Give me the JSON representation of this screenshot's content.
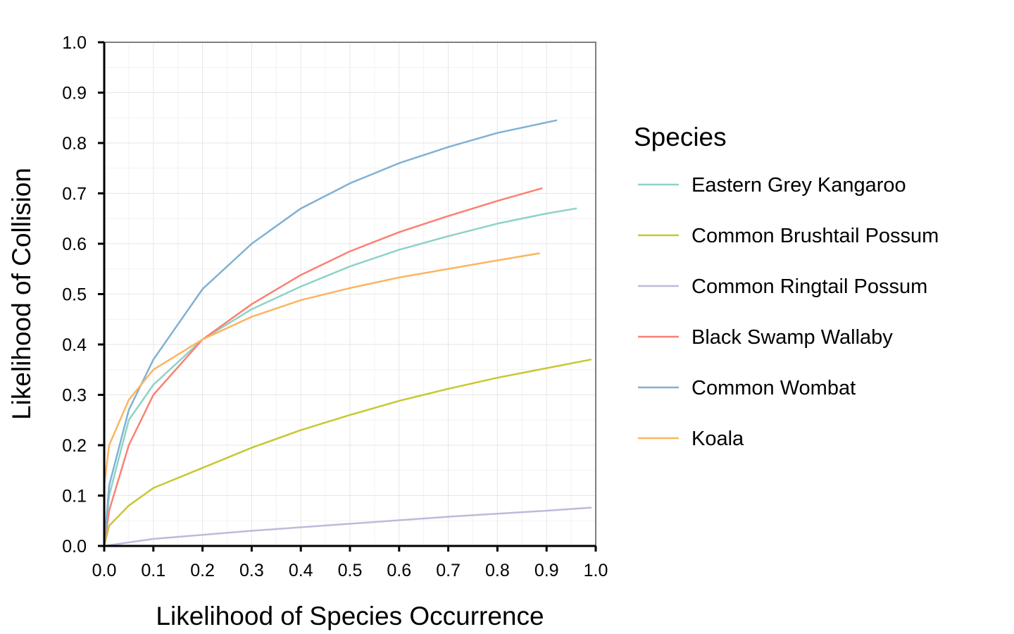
{
  "chart_data": {
    "type": "line",
    "title": "",
    "xlabel": "Likelihood of Species Occurrence",
    "ylabel": "Likelihood of Collision",
    "xlim": [
      0,
      1
    ],
    "ylim": [
      0,
      1
    ],
    "xticks": [
      "0.0",
      "0.1",
      "0.2",
      "0.3",
      "0.4",
      "0.5",
      "0.6",
      "0.7",
      "0.8",
      "0.9",
      "1.0"
    ],
    "yticks": [
      "0.0",
      "0.1",
      "0.2",
      "0.3",
      "0.4",
      "0.5",
      "0.6",
      "0.7",
      "0.8",
      "0.9",
      "1.0"
    ],
    "grid": true,
    "legend": {
      "title": "Species",
      "placement": "right"
    },
    "series": [
      {
        "name": "Eastern Grey Kangaroo",
        "color": "#8dd3c7",
        "points": [
          [
            0,
            0
          ],
          [
            0.01,
            0.1
          ],
          [
            0.05,
            0.25
          ],
          [
            0.1,
            0.32
          ],
          [
            0.2,
            0.41
          ],
          [
            0.3,
            0.47
          ],
          [
            0.4,
            0.515
          ],
          [
            0.5,
            0.555
          ],
          [
            0.6,
            0.588
          ],
          [
            0.7,
            0.615
          ],
          [
            0.8,
            0.64
          ],
          [
            0.9,
            0.66
          ],
          [
            0.96,
            0.67
          ]
        ]
      },
      {
        "name": "Common Brushtail Possum",
        "color": "#c7c832",
        "points": [
          [
            0,
            0
          ],
          [
            0.01,
            0.04
          ],
          [
            0.05,
            0.08
          ],
          [
            0.1,
            0.115
          ],
          [
            0.2,
            0.155
          ],
          [
            0.3,
            0.195
          ],
          [
            0.4,
            0.23
          ],
          [
            0.5,
            0.26
          ],
          [
            0.6,
            0.288
          ],
          [
            0.7,
            0.312
          ],
          [
            0.8,
            0.334
          ],
          [
            0.9,
            0.353
          ],
          [
            0.99,
            0.37
          ]
        ]
      },
      {
        "name": "Common Ringtail Possum",
        "color": "#bebada",
        "points": [
          [
            0,
            0
          ],
          [
            0.1,
            0.014
          ],
          [
            0.2,
            0.022
          ],
          [
            0.3,
            0.03
          ],
          [
            0.4,
            0.037
          ],
          [
            0.5,
            0.044
          ],
          [
            0.6,
            0.051
          ],
          [
            0.7,
            0.058
          ],
          [
            0.8,
            0.064
          ],
          [
            0.9,
            0.07
          ],
          [
            0.99,
            0.076
          ]
        ]
      },
      {
        "name": "Black Swamp Wallaby",
        "color": "#fb8072",
        "points": [
          [
            0,
            0
          ],
          [
            0.01,
            0.07
          ],
          [
            0.05,
            0.2
          ],
          [
            0.1,
            0.3
          ],
          [
            0.2,
            0.41
          ],
          [
            0.3,
            0.48
          ],
          [
            0.4,
            0.538
          ],
          [
            0.5,
            0.585
          ],
          [
            0.6,
            0.623
          ],
          [
            0.7,
            0.655
          ],
          [
            0.8,
            0.685
          ],
          [
            0.89,
            0.71
          ]
        ]
      },
      {
        "name": "Common Wombat",
        "color": "#80b1d3",
        "points": [
          [
            0,
            0
          ],
          [
            0.01,
            0.12
          ],
          [
            0.05,
            0.27
          ],
          [
            0.1,
            0.37
          ],
          [
            0.2,
            0.51
          ],
          [
            0.3,
            0.6
          ],
          [
            0.4,
            0.67
          ],
          [
            0.5,
            0.72
          ],
          [
            0.6,
            0.76
          ],
          [
            0.7,
            0.792
          ],
          [
            0.8,
            0.82
          ],
          [
            0.92,
            0.845
          ]
        ]
      },
      {
        "name": "Koala",
        "color": "#fdb462",
        "points": [
          [
            0,
            0.12
          ],
          [
            0.01,
            0.2
          ],
          [
            0.05,
            0.29
          ],
          [
            0.1,
            0.35
          ],
          [
            0.2,
            0.41
          ],
          [
            0.3,
            0.455
          ],
          [
            0.4,
            0.488
          ],
          [
            0.5,
            0.512
          ],
          [
            0.6,
            0.533
          ],
          [
            0.7,
            0.55
          ],
          [
            0.8,
            0.567
          ],
          [
            0.885,
            0.581
          ]
        ]
      }
    ]
  }
}
